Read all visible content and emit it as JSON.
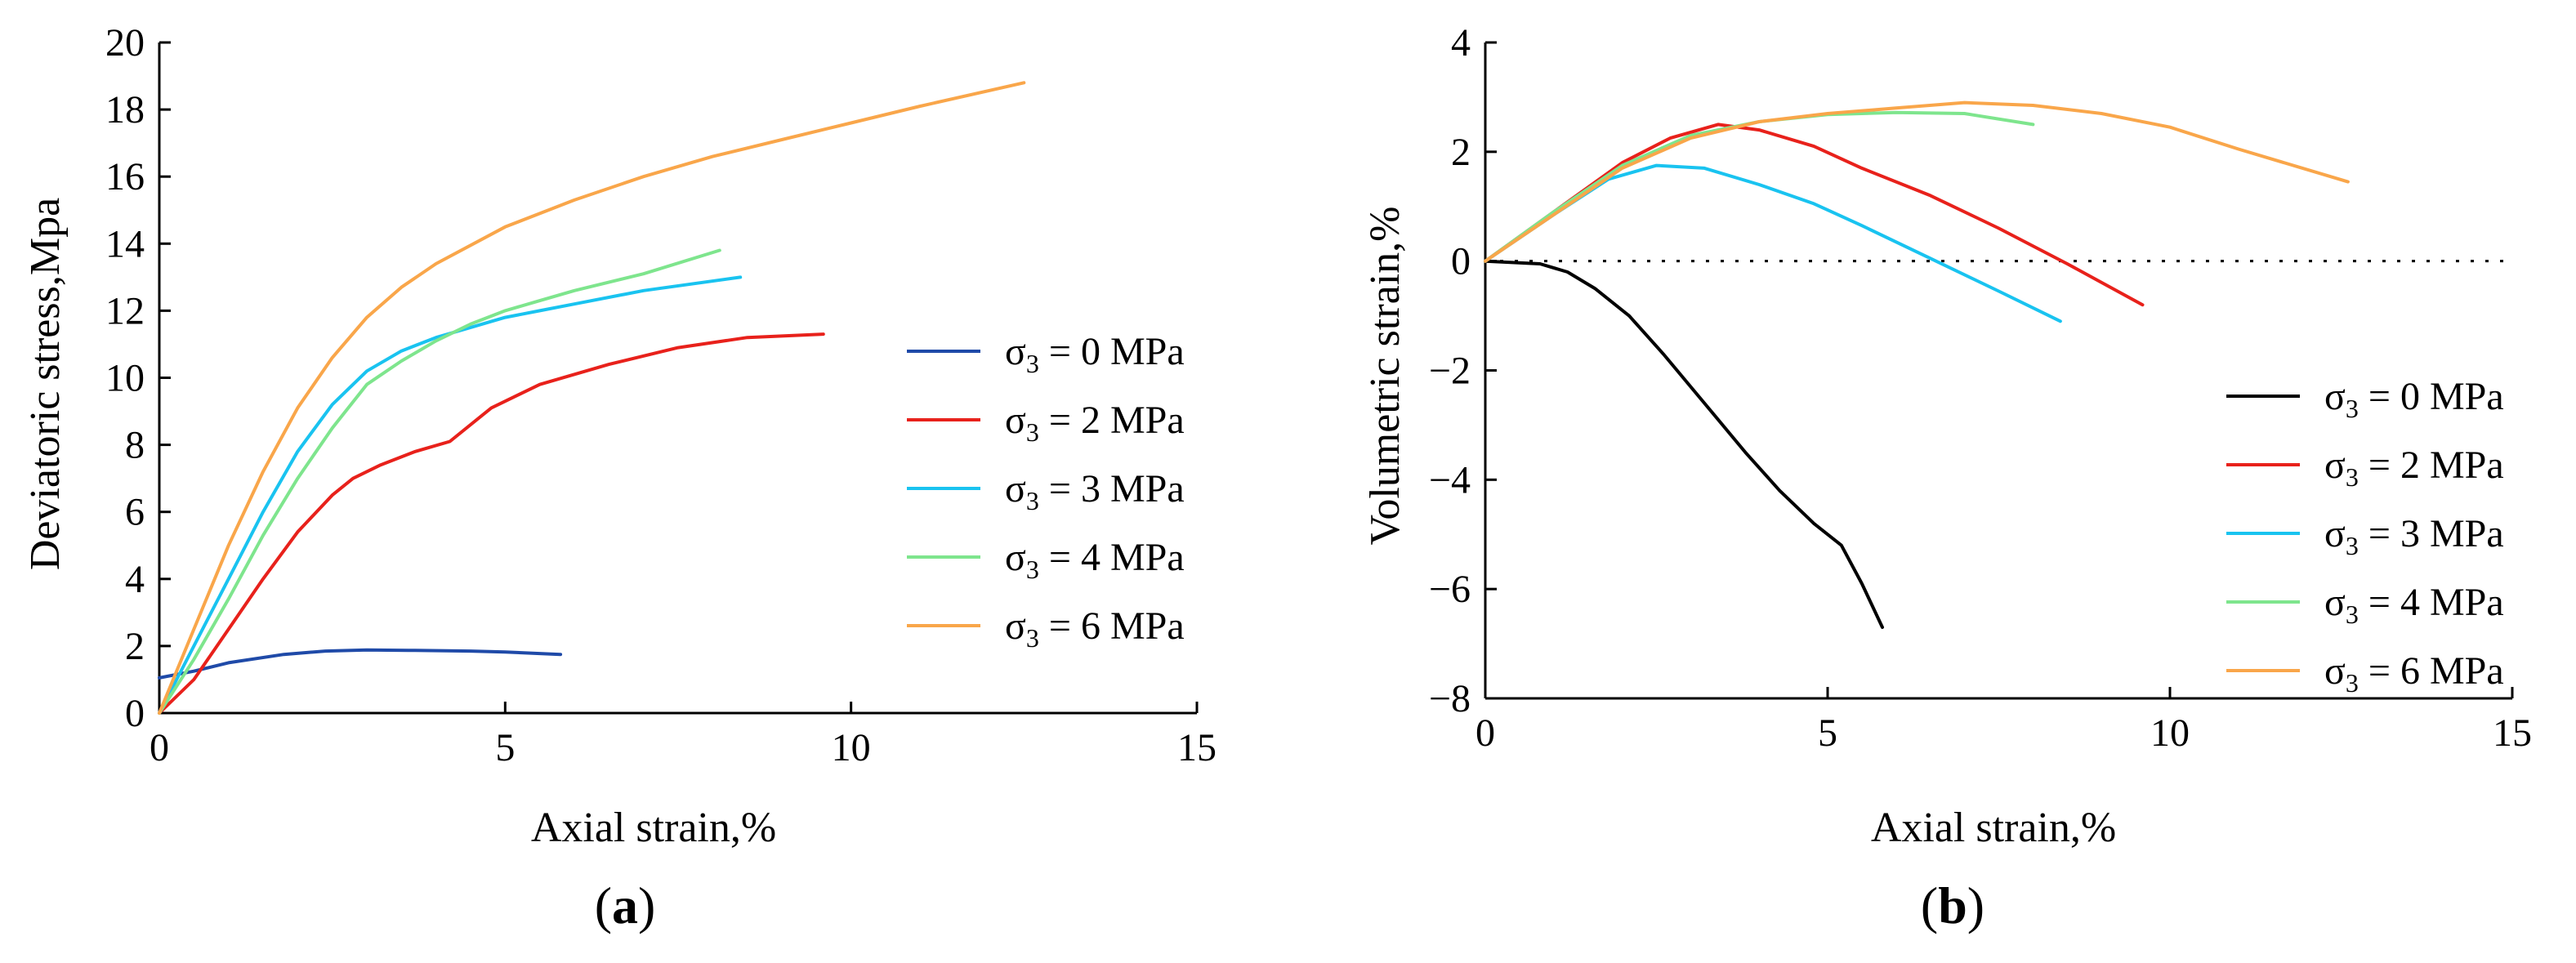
{
  "colors": {
    "sigma0_a": "#1f4aa8",
    "sigma0_b": "#000000",
    "sigma2": "#e8211b",
    "sigma3": "#19c3f0",
    "sigma4": "#7ee58d",
    "sigma6": "#f9a64a"
  },
  "chart_data": [
    {
      "id": "a",
      "type": "line",
      "caption": "(a)",
      "caption_letter": "a",
      "xlabel": "Axial strain,%",
      "ylabel": "Deviatoric stress,Mpa",
      "xlim": [
        0,
        15
      ],
      "ylim": [
        0,
        20
      ],
      "xticks": [
        0,
        5,
        10,
        15
      ],
      "yticks": [
        0,
        2,
        4,
        6,
        8,
        10,
        12,
        14,
        16,
        18,
        20
      ],
      "legend_position": "right-center",
      "series": [
        {
          "name": "σ3 = 0 MPa",
          "sym": "σ",
          "sub": "3",
          "rest": " = 0 MPa",
          "color": "#1f4aa8",
          "x": [
            0,
            0.5,
            1,
            1.8,
            2.4,
            3,
            3.6,
            4.5,
            5,
            5.8
          ],
          "y": [
            1.05,
            1.25,
            1.5,
            1.75,
            1.85,
            1.88,
            1.87,
            1.85,
            1.82,
            1.75
          ]
        },
        {
          "name": "σ3 = 2 MPa",
          "sym": "σ",
          "sub": "3",
          "rest": " = 2 MPa",
          "color": "#e8211b",
          "x": [
            0,
            0.5,
            1,
            1.5,
            2,
            2.5,
            2.8,
            3.2,
            3.7,
            4.2,
            4.8,
            5.5,
            6.5,
            7.5,
            8.5,
            9.6
          ],
          "y": [
            0,
            1,
            2.5,
            4,
            5.4,
            6.5,
            7,
            7.4,
            7.8,
            8.1,
            9.1,
            9.8,
            10.4,
            10.9,
            11.2,
            11.3
          ]
        },
        {
          "name": "σ3 = 3 MPa",
          "sym": "σ",
          "sub": "3",
          "rest": " = 3 MPa",
          "color": "#19c3f0",
          "x": [
            0,
            0.5,
            1,
            1.5,
            2,
            2.5,
            3,
            3.5,
            4,
            4.5,
            5,
            5.5,
            6,
            7,
            8.4
          ],
          "y": [
            0,
            2,
            4,
            6,
            7.8,
            9.2,
            10.2,
            10.8,
            11.2,
            11.5,
            11.8,
            12,
            12.2,
            12.6,
            13
          ]
        },
        {
          "name": "σ3 = 4 MPa",
          "sym": "σ",
          "sub": "3",
          "rest": " = 4 MPa",
          "color": "#7ee58d",
          "x": [
            0,
            0.5,
            1,
            1.5,
            2,
            2.5,
            3,
            3.5,
            4,
            4.5,
            5,
            5.5,
            6,
            7,
            8.1
          ],
          "y": [
            0,
            1.6,
            3.4,
            5.3,
            7,
            8.5,
            9.8,
            10.5,
            11.1,
            11.6,
            12,
            12.3,
            12.6,
            13.1,
            13.8
          ]
        },
        {
          "name": "σ3 = 6 MPa",
          "sym": "σ",
          "sub": "3",
          "rest": " = 6 MPa",
          "color": "#f9a64a",
          "x": [
            0,
            0.5,
            1,
            1.5,
            2,
            2.5,
            3,
            3.5,
            4,
            5,
            6,
            7,
            8,
            9,
            10,
            11,
            12.5
          ],
          "y": [
            0,
            2.5,
            5,
            7.2,
            9.1,
            10.6,
            11.8,
            12.7,
            13.4,
            14.5,
            15.3,
            16,
            16.6,
            17.1,
            17.6,
            18.1,
            18.8
          ]
        }
      ]
    },
    {
      "id": "b",
      "type": "line",
      "caption": "(b)",
      "caption_letter": "b",
      "xlabel": "Axial strain,%",
      "ylabel": "Volumetric strain,%",
      "xlim": [
        0,
        15
      ],
      "ylim": [
        -8,
        4
      ],
      "xticks": [
        0,
        5,
        10,
        15
      ],
      "yticks": [
        -8,
        -6,
        -4,
        -2,
        0,
        2,
        4
      ],
      "zero_line": "dotted",
      "legend_position": "bottom-right",
      "series": [
        {
          "name": "σ3 = 0 MPa",
          "sym": "σ",
          "sub": "3",
          "rest": " = 0 MPa",
          "color": "#000000",
          "x": [
            0,
            0.8,
            1.2,
            1.6,
            2.1,
            2.6,
            3.2,
            3.8,
            4.3,
            4.8,
            5.2,
            5.5,
            5.8
          ],
          "y": [
            0,
            -0.05,
            -0.2,
            -0.5,
            -1,
            -1.7,
            -2.6,
            -3.5,
            -4.2,
            -4.8,
            -5.2,
            -5.9,
            -6.7
          ]
        },
        {
          "name": "σ3 = 2 MPa",
          "sym": "σ",
          "sub": "3",
          "rest": " = 2 MPa",
          "color": "#e8211b",
          "x": [
            0,
            1,
            2,
            2.7,
            3.4,
            4,
            4.8,
            5.5,
            6.5,
            7.5,
            8.5,
            9.6
          ],
          "y": [
            0,
            0.9,
            1.8,
            2.25,
            2.5,
            2.4,
            2.1,
            1.7,
            1.2,
            0.6,
            -0.05,
            -0.8
          ]
        },
        {
          "name": "σ3 = 3 MPa",
          "sym": "σ",
          "sub": "3",
          "rest": " = 3 MPa",
          "color": "#19c3f0",
          "x": [
            0,
            1,
            1.8,
            2.5,
            3.2,
            4,
            4.8,
            5.5,
            6.5,
            7.5,
            8.4
          ],
          "y": [
            0,
            0.85,
            1.5,
            1.75,
            1.7,
            1.4,
            1.05,
            0.65,
            0.05,
            -0.55,
            -1.1
          ]
        },
        {
          "name": "σ3 = 4 MPa",
          "sym": "σ",
          "sub": "3",
          "rest": " = 4 MPa",
          "color": "#7ee58d",
          "x": [
            0,
            1,
            2,
            3,
            4,
            5,
            6,
            7,
            8
          ],
          "y": [
            0,
            0.9,
            1.75,
            2.3,
            2.55,
            2.68,
            2.72,
            2.7,
            2.5
          ]
        },
        {
          "name": "σ3 = 6 MPa",
          "sym": "σ",
          "sub": "3",
          "rest": " = 6 MPa",
          "color": "#f9a64a",
          "x": [
            0,
            1,
            2,
            3,
            4,
            5,
            6,
            7,
            8,
            9,
            10,
            11,
            12.6
          ],
          "y": [
            0,
            0.85,
            1.7,
            2.25,
            2.55,
            2.7,
            2.8,
            2.9,
            2.85,
            2.7,
            2.45,
            2.05,
            1.45
          ]
        }
      ]
    }
  ]
}
